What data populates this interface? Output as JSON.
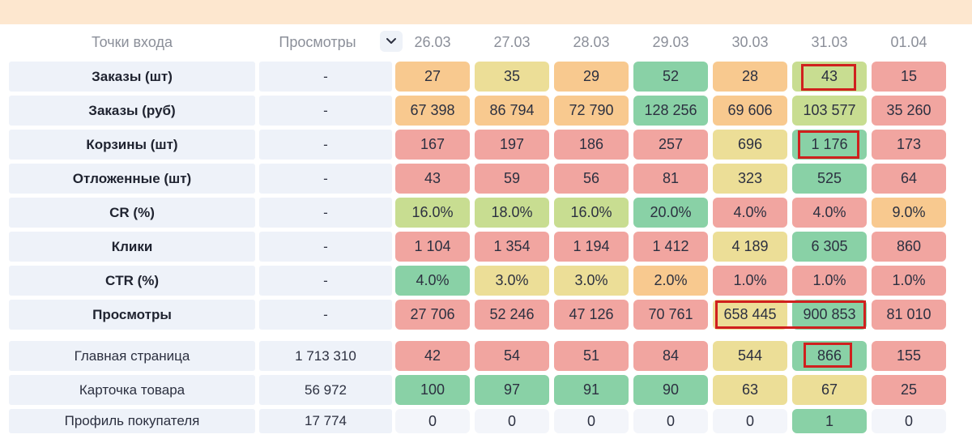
{
  "header": {
    "entry_points": "Точки входа",
    "views": "Просмотры",
    "sort_icon": "chevron-down-icon",
    "dates": [
      "26.03",
      "27.03",
      "28.03",
      "29.03",
      "30.03",
      "31.03",
      "01.04"
    ]
  },
  "colors": {
    "red": "#f1a5a0",
    "orange": "#f8c98f",
    "yellow": "#ecde97",
    "lightgreen": "#c8dd91",
    "green": "#89d1a6",
    "neutral": "#f3f5fa",
    "label_bg": "#eef2f9",
    "highlight": "#d0201e",
    "banner": "#fde7cf"
  },
  "metrics": [
    {
      "label": "Заказы (шт)",
      "views": "-",
      "values": [
        "27",
        "35",
        "29",
        "52",
        "28",
        "43",
        "15"
      ],
      "colors": [
        "orange",
        "yellow",
        "orange",
        "green",
        "orange",
        "lightgreen",
        "red"
      ]
    },
    {
      "label": "Заказы (руб)",
      "views": "-",
      "values": [
        "67 398",
        "86 794",
        "72 790",
        "128 256",
        "69 606",
        "103 577",
        "35 260"
      ],
      "colors": [
        "orange",
        "orange",
        "orange",
        "green",
        "orange",
        "lightgreen",
        "red"
      ]
    },
    {
      "label": "Корзины (шт)",
      "views": "-",
      "values": [
        "167",
        "197",
        "186",
        "257",
        "696",
        "1 176",
        "173"
      ],
      "colors": [
        "red",
        "red",
        "red",
        "red",
        "yellow",
        "green",
        "red"
      ]
    },
    {
      "label": "Отложенные (шт)",
      "views": "-",
      "values": [
        "43",
        "59",
        "56",
        "81",
        "323",
        "525",
        "64"
      ],
      "colors": [
        "red",
        "red",
        "red",
        "red",
        "yellow",
        "green",
        "red"
      ]
    },
    {
      "label": "CR (%)",
      "views": "-",
      "values": [
        "16.0%",
        "18.0%",
        "16.0%",
        "20.0%",
        "4.0%",
        "4.0%",
        "9.0%"
      ],
      "colors": [
        "lightgreen",
        "lightgreen",
        "lightgreen",
        "green",
        "red",
        "red",
        "orange"
      ]
    },
    {
      "label": "Клики",
      "views": "-",
      "values": [
        "1 104",
        "1 354",
        "1 194",
        "1 412",
        "4 189",
        "6 305",
        "860"
      ],
      "colors": [
        "red",
        "red",
        "red",
        "red",
        "yellow",
        "green",
        "red"
      ]
    },
    {
      "label": "CTR (%)",
      "views": "-",
      "values": [
        "4.0%",
        "3.0%",
        "3.0%",
        "2.0%",
        "1.0%",
        "1.0%",
        "1.0%"
      ],
      "colors": [
        "green",
        "yellow",
        "yellow",
        "orange",
        "red",
        "red",
        "red"
      ]
    },
    {
      "label": "Просмотры",
      "views": "-",
      "values": [
        "27 706",
        "52 246",
        "47 126",
        "70 761",
        "658 445",
        "900 853",
        "81 010"
      ],
      "colors": [
        "red",
        "red",
        "red",
        "red",
        "yellow",
        "green",
        "red"
      ]
    }
  ],
  "sources": [
    {
      "label": "Главная страница",
      "views": "1 713 310",
      "values": [
        "42",
        "54",
        "51",
        "84",
        "544",
        "866",
        "155"
      ],
      "colors": [
        "red",
        "red",
        "red",
        "red",
        "yellow",
        "green",
        "red"
      ]
    },
    {
      "label": "Карточка товара",
      "views": "56 972",
      "values": [
        "100",
        "97",
        "91",
        "90",
        "63",
        "67",
        "25"
      ],
      "colors": [
        "green",
        "green",
        "green",
        "green",
        "yellow",
        "yellow",
        "red"
      ]
    },
    {
      "label": "Профиль покупателя",
      "views": "17 774",
      "values": [
        "0",
        "0",
        "0",
        "0",
        "0",
        "1",
        "0"
      ],
      "colors": [
        "neutral",
        "neutral",
        "neutral",
        "neutral",
        "neutral",
        "green",
        "neutral"
      ]
    }
  ]
}
